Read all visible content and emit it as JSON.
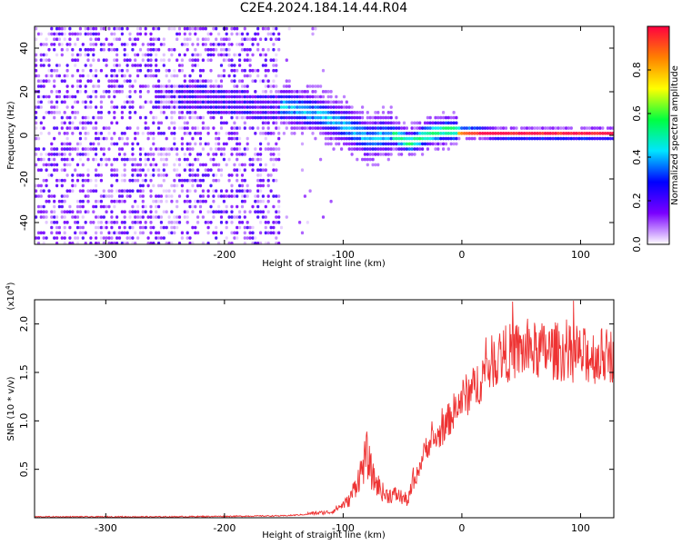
{
  "title": "C2E4.2024.184.14.44.R04",
  "chart_data": [
    {
      "type": "heatmap",
      "name": "spectrogram",
      "xlabel": "Height of straight line (km)",
      "ylabel": "Frequency (Hz)",
      "xlim": [
        -360,
        128
      ],
      "ylim": [
        -50,
        50
      ],
      "xticks": [
        -300,
        -200,
        -100,
        0,
        100
      ],
      "yticks": [
        -40,
        -20,
        0,
        20,
        40
      ],
      "grid": false,
      "colorbar": {
        "label": "Normalized spectral amplitude",
        "range": [
          0,
          1
        ],
        "ticks": [
          0.0,
          0.2,
          0.4,
          0.6,
          0.8
        ],
        "colormap": [
          "#ffffff",
          "#7a00ff",
          "#0000ff",
          "#00e5ff",
          "#00ff40",
          "#ffff00",
          "#ff8000",
          "#ff0040"
        ]
      },
      "ridge": {
        "x": [
          -250,
          -200,
          -160,
          -150,
          -120,
          -100,
          -80,
          -60,
          -45,
          -30,
          -15,
          0,
          10,
          30,
          60,
          100,
          128
        ],
        "y": [
          18,
          15,
          12,
          13,
          9,
          4,
          -2,
          0,
          -4,
          0,
          2,
          1,
          1,
          0,
          0,
          0,
          0
        ]
      }
    },
    {
      "type": "line",
      "name": "snr",
      "xlabel": "Height of straight line (km)",
      "ylabel": "SNR (10 * v/v)",
      "yscale_label": "(x10",
      "yscale_exp": "4",
      "yscale_close": ")",
      "xlim": [
        -360,
        128
      ],
      "ylim": [
        0,
        2.25
      ],
      "xticks": [
        -300,
        -200,
        -100,
        0,
        100
      ],
      "yticks": [
        0.5,
        1.0,
        1.5,
        2.0
      ],
      "color": "#ee3333",
      "grid": false,
      "envelope": {
        "x": [
          -360,
          -250,
          -150,
          -110,
          -95,
          -85,
          -80,
          -75,
          -65,
          -55,
          -45,
          -38,
          -30,
          -20,
          -10,
          0,
          10,
          20,
          30,
          45,
          60,
          80,
          100,
          128
        ],
        "y": [
          0.01,
          0.01,
          0.02,
          0.05,
          0.15,
          0.4,
          0.55,
          0.35,
          0.2,
          0.2,
          0.15,
          0.45,
          0.75,
          0.85,
          1.05,
          1.25,
          1.35,
          1.55,
          1.7,
          1.75,
          1.75,
          1.75,
          1.7,
          1.7
        ]
      }
    }
  ]
}
